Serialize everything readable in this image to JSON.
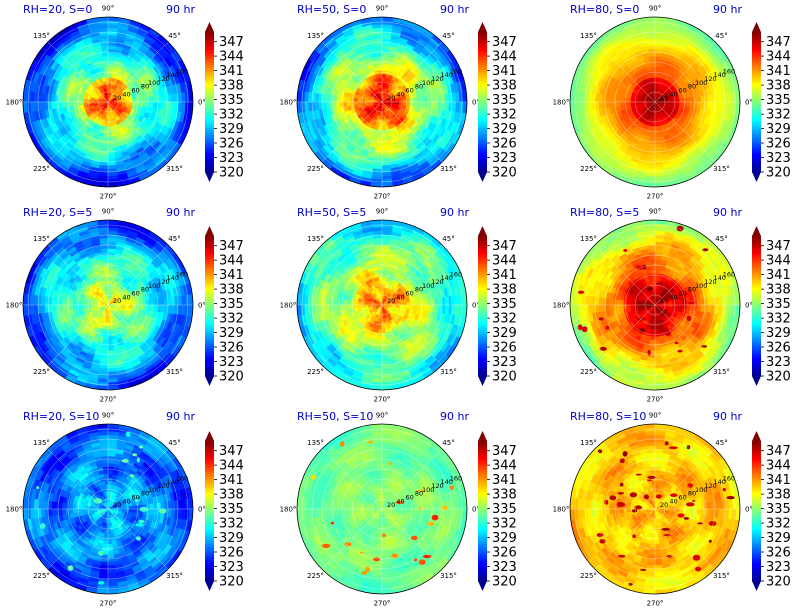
{
  "figure": {
    "valid_time": "90 hr",
    "colormap": [
      "#00008f",
      "#0000ff",
      "#0080ff",
      "#00ffff",
      "#80ff80",
      "#ffff00",
      "#ff8000",
      "#ff0000",
      "#800000"
    ]
  },
  "chart_data": [
    {
      "type": "heatmap",
      "projection": "polar",
      "title": "RH=20, S=0",
      "subtitle": "90 hr",
      "theta_ticks": [
        "0°",
        "45°",
        "90°",
        "135°",
        "180°",
        "225°",
        "270°",
        "315°"
      ],
      "r_ticks": [
        "20",
        "40",
        "60",
        "80",
        "100",
        "120",
        "140",
        "160"
      ],
      "colorbar": {
        "ticks": [
          "320",
          "323",
          "326",
          "329",
          "332",
          "335",
          "338",
          "341",
          "344",
          "347"
        ],
        "range": [
          320,
          349
        ],
        "extend": "both"
      },
      "field": {
        "env": 332,
        "core": 345,
        "core_r": 0.3,
        "outer": 324,
        "ring": 335,
        "noise": 3,
        "cells": 0.0,
        "holeless": false
      }
    },
    {
      "type": "heatmap",
      "projection": "polar",
      "title": "RH=50, S=0",
      "subtitle": "90 hr",
      "theta_ticks": [
        "0°",
        "45°",
        "90°",
        "135°",
        "180°",
        "225°",
        "270°",
        "315°"
      ],
      "r_ticks": [
        "20",
        "40",
        "60",
        "80",
        "100",
        "120",
        "140",
        "160"
      ],
      "colorbar": {
        "ticks": [
          "320",
          "323",
          "326",
          "329",
          "332",
          "335",
          "338",
          "341",
          "344",
          "347"
        ],
        "range": [
          320,
          349
        ],
        "extend": "both"
      },
      "field": {
        "env": 333,
        "core": 346,
        "core_r": 0.33,
        "outer": 326,
        "ring": 338,
        "noise": 3,
        "cells": 0.0,
        "holeless": false
      }
    },
    {
      "type": "heatmap",
      "projection": "polar",
      "title": "RH=80, S=0",
      "subtitle": "90 hr",
      "theta_ticks": [
        "0°",
        "45°",
        "90°",
        "135°",
        "180°",
        "225°",
        "270°",
        "315°"
      ],
      "r_ticks": [
        "20",
        "40",
        "60",
        "80",
        "100",
        "120",
        "140",
        "160"
      ],
      "colorbar": {
        "ticks": [
          "320",
          "323",
          "326",
          "329",
          "332",
          "335",
          "338",
          "341",
          "344",
          "347"
        ],
        "range": [
          320,
          349
        ],
        "extend": "both"
      },
      "field": {
        "env": 334,
        "core": 349,
        "core_r": 0.3,
        "outer": 334,
        "ring": 343,
        "noise": 1,
        "cells": 0.0,
        "holeless": false
      }
    },
    {
      "type": "heatmap",
      "projection": "polar",
      "title": "RH=20, S=5",
      "subtitle": "90 hr",
      "theta_ticks": [
        "0°",
        "45°",
        "90°",
        "135°",
        "180°",
        "225°",
        "270°",
        "315°"
      ],
      "r_ticks": [
        "20",
        "40",
        "60",
        "80",
        "100",
        "120",
        "140",
        "160"
      ],
      "colorbar": {
        "ticks": [
          "320",
          "323",
          "326",
          "329",
          "332",
          "335",
          "338",
          "341",
          "344",
          "347"
        ],
        "range": [
          320,
          349
        ],
        "extend": "both"
      },
      "field": {
        "env": 331,
        "core": 338,
        "core_r": 0.3,
        "outer": 325,
        "ring": 334,
        "noise": 3,
        "cells": 0.0,
        "holeless": false
      }
    },
    {
      "type": "heatmap",
      "projection": "polar",
      "title": "RH=50, S=5",
      "subtitle": "90 hr",
      "theta_ticks": [
        "0°",
        "45°",
        "90°",
        "135°",
        "180°",
        "225°",
        "270°",
        "315°"
      ],
      "r_ticks": [
        "20",
        "40",
        "60",
        "80",
        "100",
        "120",
        "140",
        "160"
      ],
      "colorbar": {
        "ticks": [
          "320",
          "323",
          "326",
          "329",
          "332",
          "335",
          "338",
          "341",
          "344",
          "347"
        ],
        "range": [
          320,
          349
        ],
        "extend": "both"
      },
      "field": {
        "env": 334,
        "core": 342,
        "core_r": 0.32,
        "outer": 330,
        "ring": 337,
        "noise": 3,
        "cells": 0.0,
        "holeless": false
      }
    },
    {
      "type": "heatmap",
      "projection": "polar",
      "title": "RH=80, S=5",
      "subtitle": "90 hr",
      "theta_ticks": [
        "0°",
        "45°",
        "90°",
        "135°",
        "180°",
        "225°",
        "270°",
        "315°"
      ],
      "r_ticks": [
        "20",
        "40",
        "60",
        "80",
        "100",
        "120",
        "140",
        "160"
      ],
      "colorbar": {
        "ticks": [
          "320",
          "323",
          "326",
          "329",
          "332",
          "335",
          "338",
          "341",
          "344",
          "347"
        ],
        "range": [
          320,
          349
        ],
        "extend": "both"
      },
      "field": {
        "env": 336,
        "core": 348,
        "core_r": 0.38,
        "outer": 335,
        "ring": 343,
        "noise": 2,
        "cells": 0.25,
        "holeless": false
      }
    },
    {
      "type": "heatmap",
      "projection": "polar",
      "title": "RH=20, S=10",
      "subtitle": "90 hr",
      "theta_ticks": [
        "0°",
        "45°",
        "90°",
        "135°",
        "180°",
        "225°",
        "270°",
        "315°"
      ],
      "r_ticks": [
        "20",
        "40",
        "60",
        "80",
        "100",
        "120",
        "140",
        "160"
      ],
      "colorbar": {
        "ticks": [
          "320",
          "323",
          "326",
          "329",
          "332",
          "335",
          "338",
          "341",
          "344",
          "347"
        ],
        "range": [
          320,
          349
        ],
        "extend": "both"
      },
      "field": {
        "env": 329,
        "core": 330,
        "core_r": 0.2,
        "outer": 324,
        "ring": 330,
        "noise": 3,
        "cells": 0.15,
        "holeless": true
      }
    },
    {
      "type": "heatmap",
      "projection": "polar",
      "title": "RH=50, S=10",
      "subtitle": "90 hr",
      "theta_ticks": [
        "0°",
        "45°",
        "90°",
        "135°",
        "180°",
        "225°",
        "270°",
        "315°"
      ],
      "r_ticks": [
        "20",
        "40",
        "60",
        "80",
        "100",
        "120",
        "140",
        "160"
      ],
      "colorbar": {
        "ticks": [
          "320",
          "323",
          "326",
          "329",
          "332",
          "335",
          "338",
          "341",
          "344",
          "347"
        ],
        "range": [
          320,
          349
        ],
        "extend": "both"
      },
      "field": {
        "env": 335,
        "core": 336,
        "core_r": 0.2,
        "outer": 333,
        "ring": 336,
        "noise": 1.5,
        "cells": 0.2,
        "holeless": true
      }
    },
    {
      "type": "heatmap",
      "projection": "polar",
      "title": "RH=80, S=10",
      "subtitle": "90 hr",
      "theta_ticks": [
        "0°",
        "45°",
        "90°",
        "135°",
        "180°",
        "225°",
        "270°",
        "315°"
      ],
      "r_ticks": [
        "20",
        "40",
        "60",
        "80",
        "100",
        "120",
        "140",
        "160"
      ],
      "colorbar": {
        "ticks": [
          "320",
          "323",
          "326",
          "329",
          "332",
          "335",
          "338",
          "341",
          "344",
          "347"
        ],
        "range": [
          320,
          349
        ],
        "extend": "both"
      },
      "field": {
        "env": 340,
        "core": 342,
        "core_r": 0.2,
        "outer": 339,
        "ring": 342,
        "noise": 2,
        "cells": 0.35,
        "holeless": true
      }
    }
  ]
}
